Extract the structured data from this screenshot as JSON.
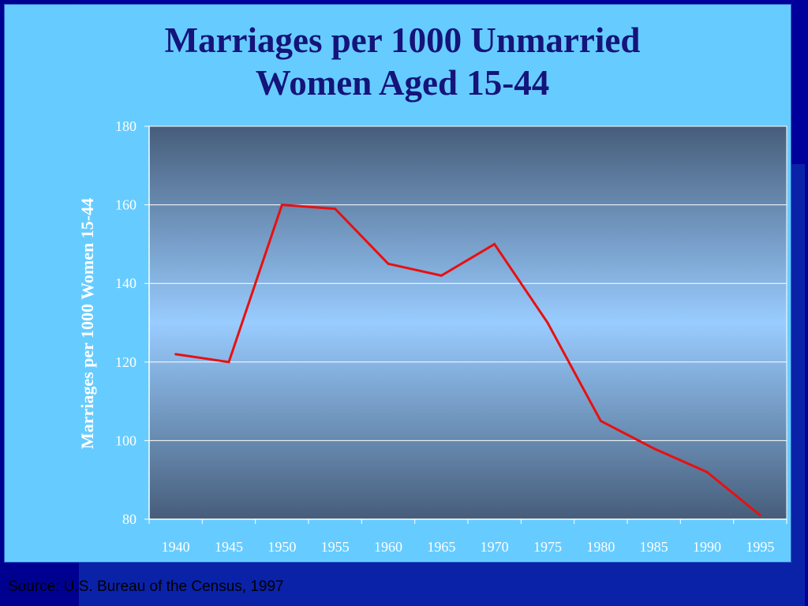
{
  "slide": {
    "title_line1": "Marriages per 1000 Unmarried",
    "title_line2": "Women Aged 15-44",
    "source": "Source: U.S. Bureau of the Census, 1997"
  },
  "colors": {
    "slide_background": "#66ccff",
    "page_background": "#00009a",
    "title_text": "#14147a",
    "plot_gradient_top": "#465d7a",
    "plot_gradient_center": "#99ccff",
    "line": "#e81010",
    "axis_text": "#ffffff"
  },
  "chart_data": {
    "type": "line",
    "title": "Marriages per 1000 Unmarried Women Aged 15-44",
    "xlabel": "",
    "ylabel": "Marriages per 1000 Women 15-44",
    "categories": [
      "1940",
      "1945",
      "1950",
      "1955",
      "1960",
      "1965",
      "1970",
      "1975",
      "1980",
      "1985",
      "1990",
      "1995"
    ],
    "series": [
      {
        "values": [
          122,
          120,
          160,
          159,
          145,
          142,
          150,
          130,
          105,
          98,
          92,
          81
        ]
      }
    ],
    "ylim": [
      80,
      180
    ],
    "yticks": [
      80,
      100,
      120,
      140,
      160,
      180
    ],
    "grid": true,
    "legend": "none"
  }
}
